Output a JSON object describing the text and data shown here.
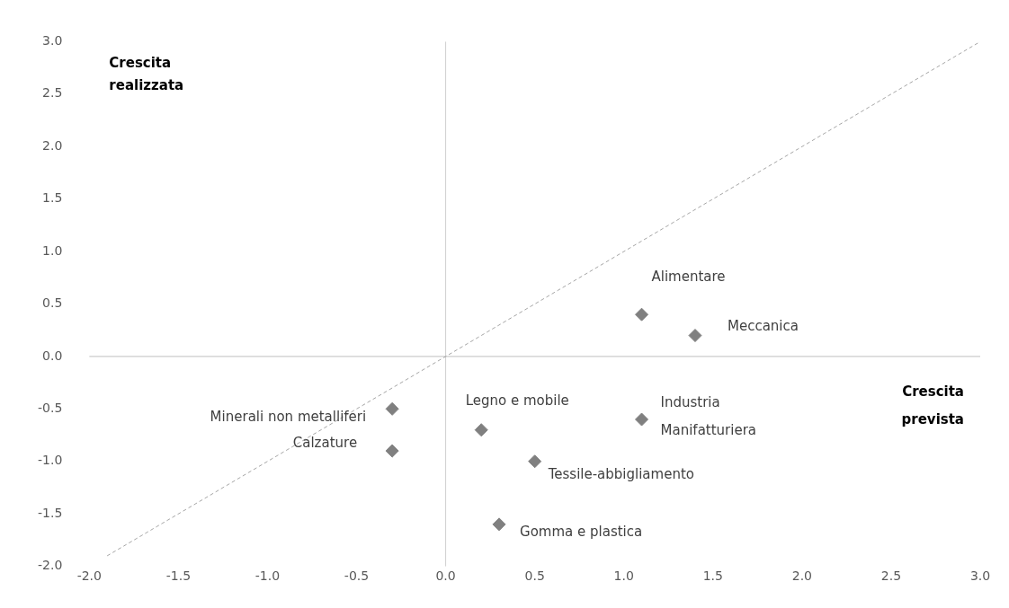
{
  "chart_data": {
    "type": "scatter",
    "xlabel": "Crescita prevista",
    "ylabel": "Crescita realizzata",
    "x": [
      1.1,
      1.4,
      1.1,
      -0.3,
      -0.3,
      0.2,
      0.5,
      0.3
    ],
    "series": [
      {
        "type": "scatter",
        "color": "#808080",
        "values": [
          0.4,
          0.2,
          -0.6,
          -0.5,
          -0.9,
          -0.7,
          -1.0,
          -1.6
        ],
        "marker": "diamond"
      },
      {
        "type": "line",
        "color": "#a6a6a6",
        "x": [
          -1.9,
          3.0
        ],
        "values": [
          -1.9,
          3.0
        ],
        "line_style": "dashed",
        "marker": "none"
      }
    ],
    "annotations": [
      {
        "text": "Alimentare",
        "x": 1.1,
        "y": 0.4
      },
      {
        "text": "Meccanica",
        "x": 1.4,
        "y": 0.2
      },
      {
        "text": "Industria Manifatturiera",
        "x": 1.1,
        "y": -0.6
      },
      {
        "text": "Minerali non metalliferi",
        "x": -0.3,
        "y": -0.5
      },
      {
        "text": "Calzature",
        "x": -0.3,
        "y": -0.9
      },
      {
        "text": "Legno e mobile",
        "x": 0.2,
        "y": -0.7
      },
      {
        "text": "Tessile-abbigliamento",
        "x": 0.5,
        "y": -1.0
      },
      {
        "text": "Gomma e plastica",
        "x": 0.3,
        "y": -1.6
      }
    ],
    "ref_lines": [
      {
        "axis": "x",
        "value": 0,
        "color": "#d0d0d0"
      },
      {
        "axis": "y",
        "value": 0,
        "color": "#bfbfbf"
      }
    ],
    "xlim": [
      -2.0,
      3.0
    ],
    "xticks": [
      {
        "value": -2,
        "label": "-2.0"
      },
      {
        "value": -1.5,
        "label": "-1.5"
      },
      {
        "value": -1,
        "label": "-1.0"
      },
      {
        "value": -0.5,
        "label": "-0.5"
      },
      {
        "value": 0,
        "label": "0.0"
      },
      {
        "value": 0.5,
        "label": "0.5"
      },
      {
        "value": 1,
        "label": "1.0"
      },
      {
        "value": 1.5,
        "label": "1.5"
      },
      {
        "value": 2,
        "label": "2.0"
      },
      {
        "value": 2.5,
        "label": "2.5"
      },
      {
        "value": 3,
        "label": "3.0"
      }
    ],
    "ylim": [
      -2.0,
      3.0
    ],
    "yticks": [
      {
        "value": -2,
        "label": "-2.0"
      },
      {
        "value": -1.5,
        "label": "-1.5"
      },
      {
        "value": -1,
        "label": "-1.0"
      },
      {
        "value": -0.5,
        "label": "-0.5"
      },
      {
        "value": 0,
        "label": "0.0"
      },
      {
        "value": 0.5,
        "label": "0.5"
      },
      {
        "value": 1,
        "label": "1.0"
      },
      {
        "value": 1.5,
        "label": "1.5"
      },
      {
        "value": 2,
        "label": "2.0"
      },
      {
        "value": 2.5,
        "label": "2.5"
      },
      {
        "value": 3,
        "label": "3.0"
      }
    ],
    "grid": false,
    "legend": false
  }
}
